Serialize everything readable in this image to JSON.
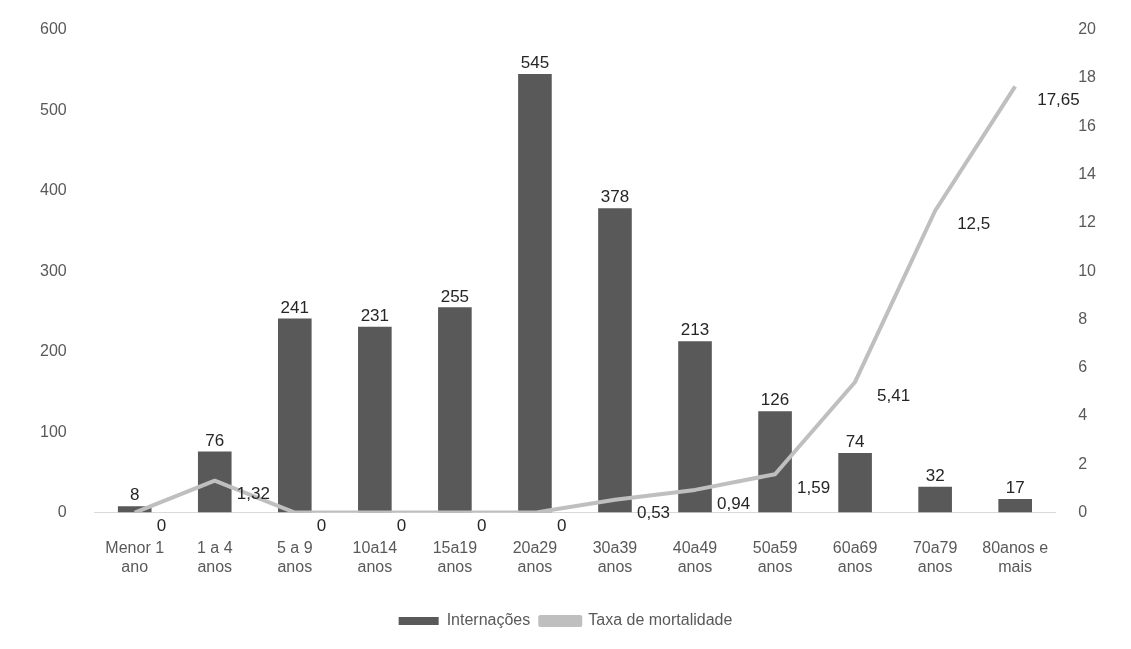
{
  "chart_data": {
    "type": "bar",
    "categories": [
      "Menor 1 ano",
      "1 a 4 anos",
      "5 a 9 anos",
      "10a14 anos",
      "15a19 anos",
      "20a29 anos",
      "30a39 anos",
      "40a49 anos",
      "50a59 anos",
      "60a69 anos",
      "70a79 anos",
      "80anos e mais"
    ],
    "series": [
      {
        "name": "Internações",
        "color": "#595959",
        "values": [
          8,
          76,
          241,
          231,
          255,
          545,
          378,
          213,
          126,
          74,
          32,
          17
        ],
        "value_labels": [
          "8",
          "76",
          "241",
          "231",
          "255",
          "545",
          "378",
          "213",
          "126",
          "74",
          "32",
          "17"
        ]
      },
      {
        "name": "Taxa de mortalidade",
        "type": "line",
        "axis": "y2",
        "color": "#bfbfbf",
        "marker": "none",
        "values": [
          0,
          1.32,
          0,
          0,
          0,
          0,
          0.53,
          0.94,
          1.59,
          5.41,
          12.5,
          17.65
        ],
        "value_labels": [
          "0",
          "1,32",
          "0",
          "0",
          "0",
          "0",
          "0,53",
          "0,94",
          "1,59",
          "5,41",
          "12,5",
          "17,65"
        ]
      }
    ],
    "ylim": [
      0,
      600
    ],
    "yticks": [
      0,
      100,
      200,
      300,
      400,
      500,
      600
    ],
    "y2lim": [
      0,
      20
    ],
    "y2ticks": [
      0,
      2,
      4,
      6,
      8,
      10,
      12,
      14,
      16,
      18,
      20
    ],
    "grid": false,
    "legend": "bottom"
  }
}
